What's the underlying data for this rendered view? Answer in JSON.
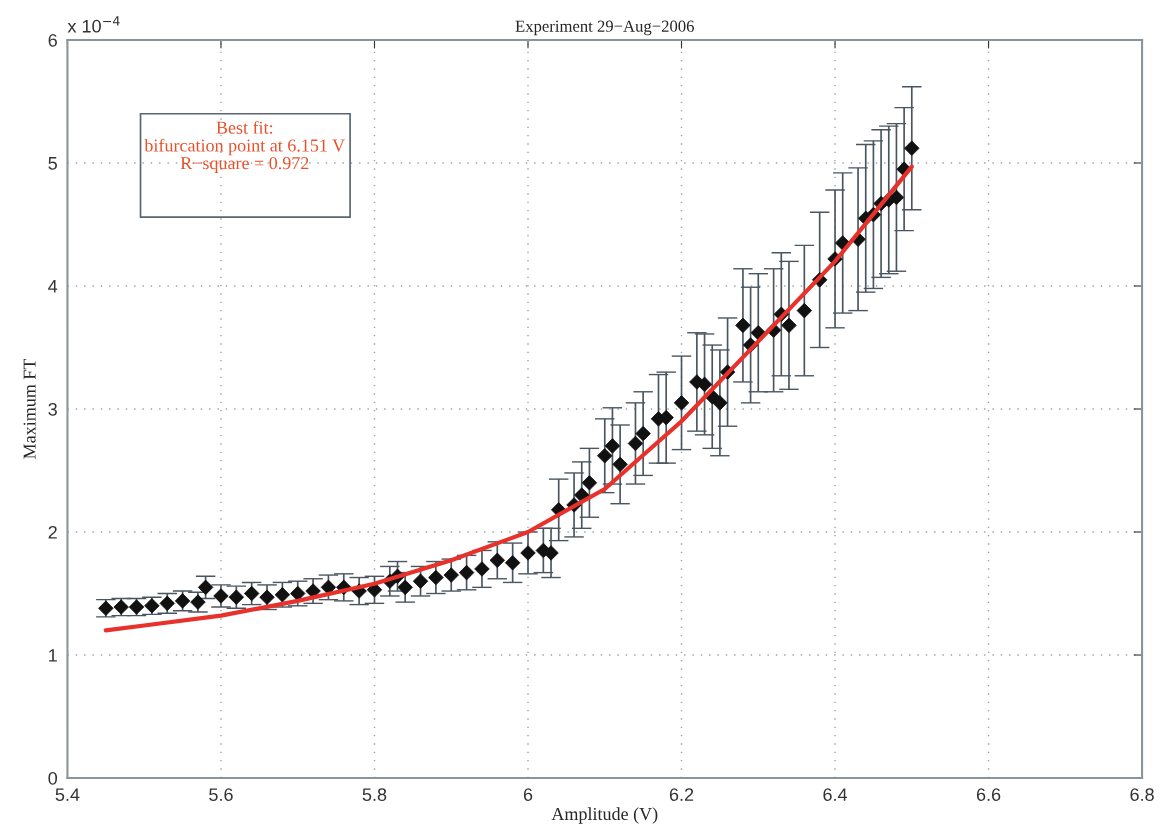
{
  "chart_data": {
    "type": "scatter",
    "title": "Experiment 29−Aug−2006",
    "xlabel": "Amplitude (V)",
    "ylabel": "Maximum FT",
    "xlim": [
      5.4,
      6.8
    ],
    "xticks": [
      5.4,
      5.6,
      5.8,
      6,
      6.2,
      6.4,
      6.6,
      6.8
    ],
    "ylim": [
      0,
      6
    ],
    "yticks": [
      0,
      1,
      2,
      3,
      4,
      5,
      6
    ],
    "grid": true,
    "marker": "diamond",
    "annotations": [
      "x 10$^{−4}$",
      "Best fit:\nbifurcation point at 6.151 V\nR−square = 0.972"
    ],
    "series": [
      {
        "color": "#111111",
        "x": [
          5.45,
          5.47,
          5.49,
          5.51,
          5.53,
          5.55,
          5.57,
          5.58,
          5.6,
          5.62,
          5.64,
          5.66,
          5.68,
          5.7,
          5.72,
          5.74,
          5.76,
          5.78,
          5.8,
          5.82,
          5.83,
          5.84,
          5.86,
          5.88,
          5.9,
          5.92,
          5.94,
          5.96,
          5.98,
          6.0,
          6.02,
          6.03,
          6.04,
          6.06,
          6.07,
          6.08,
          6.1,
          6.11,
          6.12,
          6.14,
          6.15,
          6.17,
          6.18,
          6.2,
          6.22,
          6.23,
          6.24,
          6.25,
          6.26,
          6.28,
          6.29,
          6.3,
          6.32,
          6.33,
          6.34,
          6.36,
          6.38,
          6.4,
          6.41,
          6.43,
          6.44,
          6.45,
          6.46,
          6.47,
          6.48,
          6.49,
          6.5
        ],
        "values": [
          1.38,
          1.39,
          1.39,
          1.4,
          1.42,
          1.44,
          1.43,
          1.55,
          1.48,
          1.47,
          1.5,
          1.47,
          1.49,
          1.5,
          1.52,
          1.55,
          1.55,
          1.52,
          1.53,
          1.6,
          1.64,
          1.55,
          1.6,
          1.63,
          1.65,
          1.67,
          1.7,
          1.77,
          1.75,
          1.83,
          1.85,
          1.83,
          2.18,
          2.22,
          2.3,
          2.4,
          2.62,
          2.7,
          2.55,
          2.72,
          2.8,
          2.92,
          2.93,
          3.05,
          3.22,
          3.2,
          3.1,
          3.05,
          3.3,
          3.68,
          3.52,
          3.62,
          3.64,
          3.77,
          3.68,
          3.8,
          4.05,
          4.22,
          4.35,
          4.38,
          4.55,
          4.58,
          4.67,
          4.7,
          4.72,
          4.95,
          5.12
        ],
        "errors": [
          0.07,
          0.07,
          0.07,
          0.07,
          0.08,
          0.08,
          0.08,
          0.09,
          0.09,
          0.09,
          0.09,
          0.1,
          0.1,
          0.1,
          0.1,
          0.1,
          0.11,
          0.11,
          0.11,
          0.12,
          0.12,
          0.12,
          0.12,
          0.13,
          0.13,
          0.14,
          0.15,
          0.15,
          0.16,
          0.17,
          0.18,
          0.2,
          0.25,
          0.26,
          0.27,
          0.28,
          0.3,
          0.31,
          0.32,
          0.33,
          0.34,
          0.36,
          0.37,
          0.38,
          0.4,
          0.41,
          0.42,
          0.43,
          0.44,
          0.46,
          0.47,
          0.48,
          0.5,
          0.5,
          0.52,
          0.53,
          0.55,
          0.56,
          0.57,
          0.58,
          0.6,
          0.6,
          0.6,
          0.6,
          0.6,
          0.5,
          0.5
        ]
      },
      {
        "type": "line",
        "color": "#e8312a",
        "marker": "none",
        "line_style": "solid",
        "x": [
          5.45,
          5.5,
          5.6,
          5.7,
          5.8,
          5.9,
          6.0,
          6.1,
          6.2,
          6.3,
          6.4,
          6.5
        ],
        "values": [
          1.2,
          1.24,
          1.32,
          1.44,
          1.58,
          1.77,
          2.0,
          2.35,
          2.9,
          3.55,
          4.2,
          4.97
        ]
      }
    ]
  }
}
